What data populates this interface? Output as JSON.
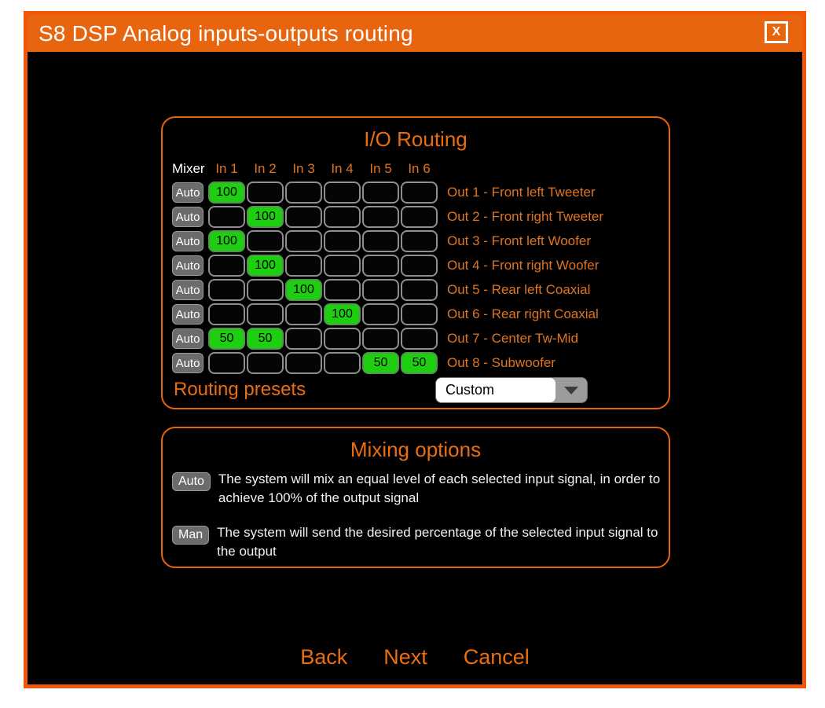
{
  "window": {
    "title": "S8 DSP Analog inputs-outputs routing",
    "close_label": "X"
  },
  "colors": {
    "window_border": "#F2560A",
    "titlebar": "#E8650F",
    "panel_border": "#E8650F",
    "heading_orange": "#EA6E0F",
    "label_orange": "#E07420",
    "active_green": "#1DCE11",
    "button_gray": "#6B6B6B",
    "background": "#000000"
  },
  "io_routing": {
    "title": "I/O Routing",
    "mixer_header": "Mixer",
    "input_headers": [
      "In 1",
      "In 2",
      "In 3",
      "In 4",
      "In 5",
      "In 6"
    ],
    "rows": [
      {
        "mixer": "Auto",
        "cells": [
          "100",
          "",
          "",
          "",
          "",
          ""
        ],
        "label": "Out 1 - Front left Tweeter"
      },
      {
        "mixer": "Auto",
        "cells": [
          "",
          "100",
          "",
          "",
          "",
          ""
        ],
        "label": "Out 2 - Front right Tweeter"
      },
      {
        "mixer": "Auto",
        "cells": [
          "100",
          "",
          "",
          "",
          "",
          ""
        ],
        "label": "Out 3 - Front left Woofer"
      },
      {
        "mixer": "Auto",
        "cells": [
          "",
          "100",
          "",
          "",
          "",
          ""
        ],
        "label": "Out 4 - Front right Woofer"
      },
      {
        "mixer": "Auto",
        "cells": [
          "",
          "",
          "100",
          "",
          "",
          ""
        ],
        "label": "Out 5 - Rear left Coaxial"
      },
      {
        "mixer": "Auto",
        "cells": [
          "",
          "",
          "",
          "100",
          "",
          ""
        ],
        "label": "Out 6 - Rear right Coaxial"
      },
      {
        "mixer": "Auto",
        "cells": [
          "50",
          "50",
          "",
          "",
          "",
          ""
        ],
        "label": "Out 7 - Center Tw-Mid"
      },
      {
        "mixer": "Auto",
        "cells": [
          "",
          "",
          "",
          "",
          "50",
          "50"
        ],
        "label": "Out 8 - Subwoofer"
      }
    ],
    "presets_label": "Routing presets",
    "preset_value": "Custom"
  },
  "mixing_options": {
    "title": "Mixing options",
    "items": [
      {
        "badge": "Auto",
        "text": "The system will mix an equal level of each selected input signal, in order to achieve 100% of the output signal"
      },
      {
        "badge": "Man",
        "text": "The system will send the desired percentage of the selected input signal to the output"
      }
    ]
  },
  "footer": {
    "back": "Back",
    "next": "Next",
    "cancel": "Cancel"
  }
}
